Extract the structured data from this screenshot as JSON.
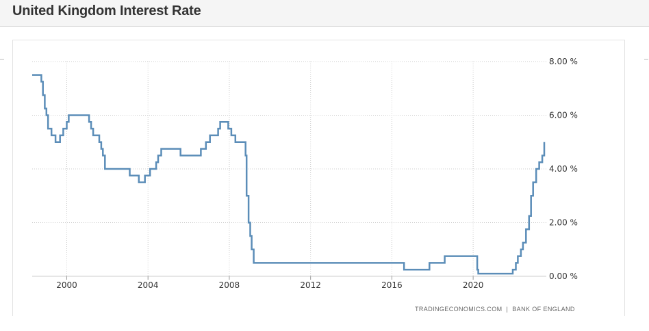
{
  "page": {
    "title": "United Kingdom Interest Rate"
  },
  "source": {
    "site": "TRADINGECONOMICS.COM",
    "separator": "|",
    "provider": "BANK OF ENGLAND"
  },
  "colors": {
    "line": "#5b8db8",
    "grid": "#cccccc",
    "text": "#333333"
  },
  "chart_data": {
    "type": "line",
    "title": "United Kingdom Interest Rate",
    "xlabel": "",
    "ylabel": "",
    "xlim": [
      1998.3,
      2023.6
    ],
    "ylim": [
      0,
      8
    ],
    "x_ticks": [
      2000,
      2004,
      2008,
      2012,
      2016,
      2020
    ],
    "y_ticks": [
      0,
      2,
      4,
      6,
      8
    ],
    "y_tick_labels": [
      "0.00 %",
      "2.00 %",
      "4.00 %",
      "6.00 %",
      "8.00 %"
    ],
    "grid": true,
    "legend": "none",
    "step": true,
    "series": [
      {
        "points": [
          [
            1998.3,
            7.5
          ],
          [
            1998.75,
            7.25
          ],
          [
            1998.83,
            6.75
          ],
          [
            1998.92,
            6.25
          ],
          [
            1999.0,
            6.0
          ],
          [
            1999.08,
            5.5
          ],
          [
            1999.25,
            5.25
          ],
          [
            1999.45,
            5.0
          ],
          [
            1999.67,
            5.25
          ],
          [
            1999.83,
            5.5
          ],
          [
            2000.0,
            5.75
          ],
          [
            2000.1,
            6.0
          ],
          [
            2001.1,
            5.75
          ],
          [
            2001.2,
            5.5
          ],
          [
            2001.3,
            5.25
          ],
          [
            2001.6,
            5.0
          ],
          [
            2001.7,
            4.75
          ],
          [
            2001.78,
            4.5
          ],
          [
            2001.88,
            4.0
          ],
          [
            2003.1,
            3.75
          ],
          [
            2003.55,
            3.5
          ],
          [
            2003.85,
            3.75
          ],
          [
            2004.1,
            4.0
          ],
          [
            2004.4,
            4.25
          ],
          [
            2004.5,
            4.5
          ],
          [
            2004.65,
            4.75
          ],
          [
            2005.6,
            4.5
          ],
          [
            2006.6,
            4.75
          ],
          [
            2006.85,
            5.0
          ],
          [
            2007.05,
            5.25
          ],
          [
            2007.45,
            5.5
          ],
          [
            2007.55,
            5.75
          ],
          [
            2007.95,
            5.5
          ],
          [
            2008.1,
            5.25
          ],
          [
            2008.3,
            5.0
          ],
          [
            2008.8,
            4.5
          ],
          [
            2008.85,
            3.0
          ],
          [
            2008.95,
            2.0
          ],
          [
            2009.03,
            1.5
          ],
          [
            2009.1,
            1.0
          ],
          [
            2009.2,
            0.5
          ],
          [
            2016.6,
            0.25
          ],
          [
            2017.85,
            0.5
          ],
          [
            2018.6,
            0.75
          ],
          [
            2020.2,
            0.25
          ],
          [
            2020.25,
            0.1
          ],
          [
            2021.95,
            0.25
          ],
          [
            2022.1,
            0.5
          ],
          [
            2022.2,
            0.75
          ],
          [
            2022.35,
            1.0
          ],
          [
            2022.45,
            1.25
          ],
          [
            2022.6,
            1.75
          ],
          [
            2022.75,
            2.25
          ],
          [
            2022.85,
            3.0
          ],
          [
            2022.95,
            3.5
          ],
          [
            2023.1,
            4.0
          ],
          [
            2023.25,
            4.25
          ],
          [
            2023.4,
            4.5
          ],
          [
            2023.5,
            5.0
          ]
        ]
      }
    ]
  }
}
